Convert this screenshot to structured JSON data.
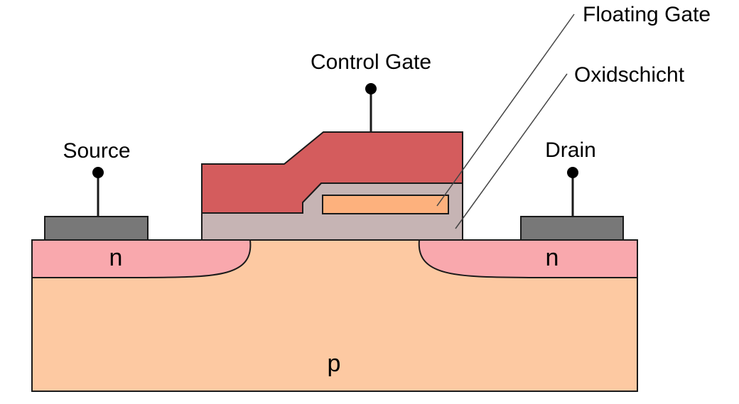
{
  "labels": {
    "floating_gate": "Floating Gate",
    "control_gate": "Control Gate",
    "oxide_layer": "Oxidschicht",
    "source": "Source",
    "drain": "Drain",
    "n_left": "n",
    "n_right": "n",
    "p_substrate": "p"
  },
  "colors": {
    "p_substrate": "#fdc9a2",
    "n_region": "#f9a8ad",
    "contact": "#787878",
    "oxide": "#c6b4b4",
    "control_gate": "#d45c5d",
    "floating_gate": "#fdb17d",
    "outline": "#1a1a1a"
  }
}
